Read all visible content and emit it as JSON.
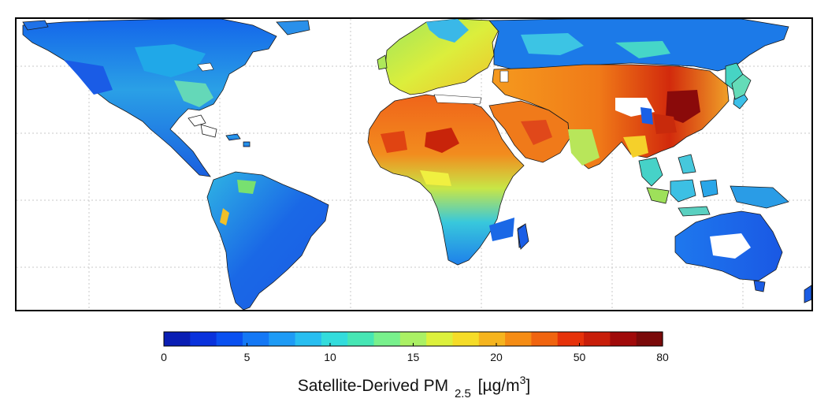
{
  "map": {
    "legend_title": {
      "prefix": "Satellite-Derived PM",
      "subscript": "2.5",
      "unit_open": "[",
      "unit_mu": "µg/m",
      "unit_sup": "3",
      "unit_close": "]"
    },
    "colorbar": {
      "tick_labels": [
        "0",
        "5",
        "10",
        "15",
        "20",
        "50",
        "80"
      ],
      "colors": [
        "#0a1eb4",
        "#0a32dc",
        "#0a50f0",
        "#1478f5",
        "#1e9bf5",
        "#28bef0",
        "#32dcdc",
        "#46e6b4",
        "#78f08c",
        "#aaf064",
        "#dcf03c",
        "#f5dc28",
        "#f5b41e",
        "#f58c14",
        "#f0640f",
        "#e6320a",
        "#c81e0a",
        "#a00a0a",
        "#7a0a0a"
      ]
    },
    "theme": {
      "grid_color": "#c8c8c8",
      "ocean_color": "#ffffff",
      "border_color": "#000000"
    }
  }
}
